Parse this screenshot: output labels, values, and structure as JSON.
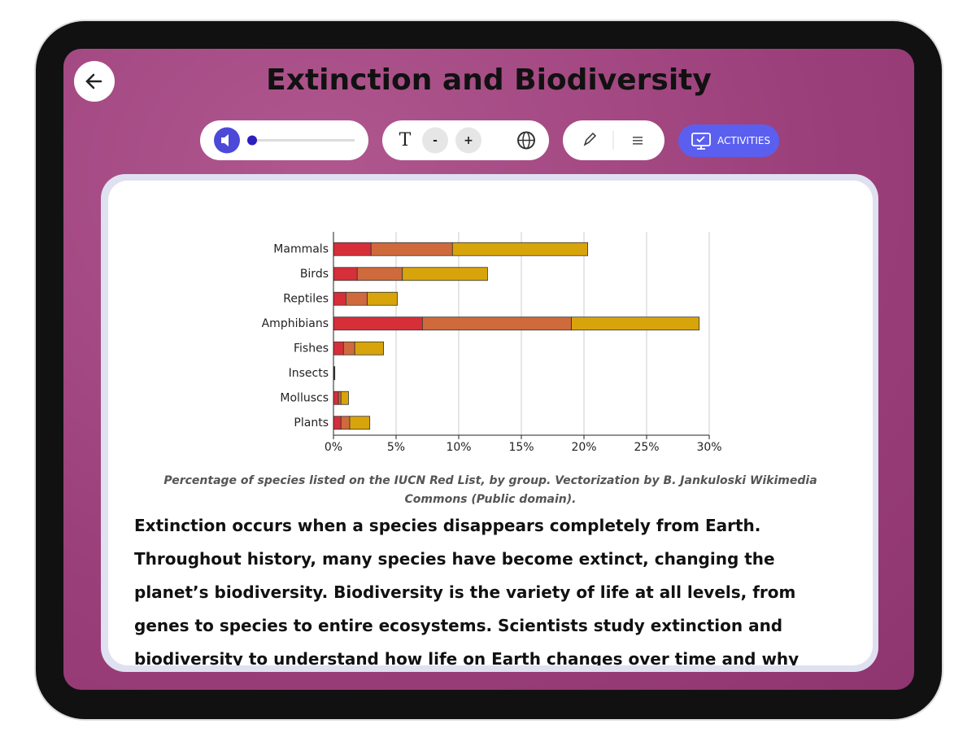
{
  "header": {
    "title": "Extinction and Biodiversity"
  },
  "toolbar": {
    "font_decrease": "-",
    "font_increase": "+",
    "activities": "ACTIVITIES"
  },
  "chart_data": {
    "type": "bar",
    "orientation": "horizontal",
    "stacked": true,
    "categories": [
      "Mammals",
      "Birds",
      "Reptiles",
      "Amphibians",
      "Fishes",
      "Insects",
      "Molluscs",
      "Plants"
    ],
    "series": [
      {
        "color": "#d62f3a",
        "values": [
          3.0,
          1.9,
          1.0,
          7.1,
          0.8,
          0.03,
          0.4,
          0.6
        ]
      },
      {
        "color": "#cf6a3c",
        "values": [
          6.5,
          3.6,
          1.7,
          11.9,
          0.9,
          0.03,
          0.2,
          0.7
        ]
      },
      {
        "color": "#d8a40c",
        "values": [
          10.8,
          6.8,
          2.4,
          10.2,
          2.3,
          0.05,
          0.6,
          1.6
        ]
      }
    ],
    "xlim": [
      0,
      30
    ],
    "xticks": [
      {
        "value": 0,
        "label": "0%"
      },
      {
        "value": 5,
        "label": "5%"
      },
      {
        "value": 10,
        "label": "10%"
      },
      {
        "value": 15,
        "label": "15%"
      },
      {
        "value": 20,
        "label": "20%"
      },
      {
        "value": 25,
        "label": "25%"
      },
      {
        "value": 30,
        "label": "30%"
      }
    ],
    "grid": true
  },
  "caption": "Percentage of species listed on the IUCN Red List, by group. Vectorization by B. Jankuloski Wikimedia Commons (Public domain).",
  "body": "Extinction occurs when a species disappears completely from Earth. Throughout history, many species have become extinct, changing the planet’s biodiversity. Biodiversity is the variety of life at all levels, from genes to species to entire ecosystems. Scientists study extinction and biodiversity to understand how life on Earth changes over time and why protecting this diversity is important for all living"
}
